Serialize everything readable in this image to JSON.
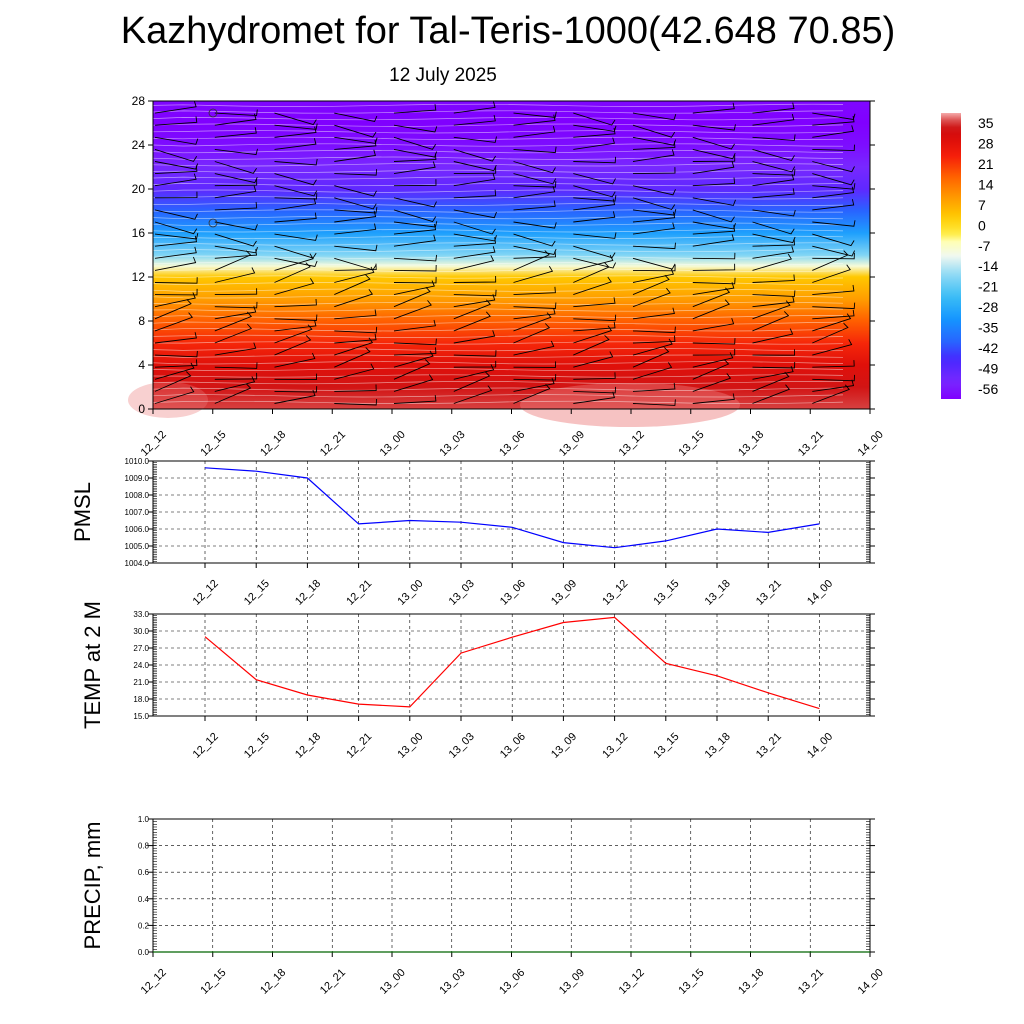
{
  "title": "Kazhydromet for Tal-Teris-1000(42.648 70.85)",
  "subtitle": "12 July 2025",
  "colors": {
    "pmsl_line": "#0000ff",
    "temp_line": "#ff0000",
    "precip_line": "#006400",
    "grid": "#000000"
  },
  "chart_data": [
    {
      "id": "cross_section",
      "type": "heatmap",
      "title": "",
      "xlabel": "",
      "ylabel": "",
      "x_ticks": [
        "12_12",
        "12_15",
        "12_18",
        "12_21",
        "13_00",
        "13_03",
        "13_06",
        "13_09",
        "13_12",
        "13_15",
        "13_18",
        "13_21",
        "14_00"
      ],
      "y_ticks": [
        0,
        4,
        8,
        12,
        16,
        20,
        24,
        28
      ],
      "ylim": [
        0,
        28
      ],
      "colorbar_labels": [
        "35",
        "28",
        "21",
        "14",
        "7",
        "0",
        "-7",
        "-14",
        "-21",
        "-28",
        "-35",
        "-42",
        "-49",
        "-56"
      ],
      "profile_levels": [
        0,
        2,
        4,
        6,
        8,
        10,
        12,
        13,
        14,
        16,
        18,
        20,
        22,
        24,
        26,
        28
      ],
      "profile_values": [
        33,
        30,
        26,
        20,
        14,
        6,
        0,
        -12,
        -22,
        -34,
        -44,
        -54,
        -58,
        -62,
        -64,
        -63
      ],
      "contours": "white isolines",
      "barbs": "wind barbs at each time step"
    },
    {
      "id": "pmsl",
      "type": "line",
      "title": "",
      "xlabel": "",
      "ylabel": "PMSL",
      "ylim": [
        1004.0,
        1010.0
      ],
      "y_ticks": [
        "1004.0",
        "1005.0",
        "1006.0",
        "1007.0",
        "1008.0",
        "1009.0",
        "1010.0"
      ],
      "categories": [
        "12_12",
        "12_15",
        "12_18",
        "12_21",
        "13_00",
        "13_03",
        "13_06",
        "13_09",
        "13_12",
        "13_15",
        "13_18",
        "13_21",
        "14_00"
      ],
      "values": [
        1009.6,
        1009.4,
        1009.0,
        1006.3,
        1006.5,
        1006.4,
        1006.1,
        1005.2,
        1004.9,
        1005.3,
        1006.0,
        1005.8,
        1006.3
      ]
    },
    {
      "id": "temp",
      "type": "line",
      "title": "",
      "xlabel": "",
      "ylabel": "TEMP at 2 M",
      "ylim": [
        15.0,
        33.0
      ],
      "y_ticks": [
        "15.0",
        "18.0",
        "21.0",
        "24.0",
        "27.0",
        "30.0",
        "33.0"
      ],
      "categories": [
        "12_12",
        "12_15",
        "12_18",
        "12_21",
        "13_00",
        "13_03",
        "13_06",
        "13_09",
        "13_12",
        "13_15",
        "13_18",
        "13_21",
        "14_00"
      ],
      "values": [
        29.0,
        21.4,
        18.7,
        17.1,
        16.6,
        26.1,
        28.9,
        31.5,
        32.4,
        24.3,
        22.1,
        19.1,
        16.3
      ]
    },
    {
      "id": "precip",
      "type": "line",
      "title": "",
      "xlabel": "",
      "ylabel": "PRECIP, mm",
      "ylim": [
        0.0,
        1.0
      ],
      "y_ticks": [
        "0.0",
        "0.2",
        "0.4",
        "0.6",
        "0.8",
        "1.0"
      ],
      "categories": [
        "12_12",
        "12_15",
        "12_18",
        "12_21",
        "13_00",
        "13_03",
        "13_06",
        "13_09",
        "13_12",
        "13_15",
        "13_18",
        "13_21",
        "14_00"
      ],
      "values": [
        0,
        0,
        0,
        0,
        0,
        0,
        0,
        0,
        0,
        0,
        0,
        0,
        0
      ]
    }
  ]
}
